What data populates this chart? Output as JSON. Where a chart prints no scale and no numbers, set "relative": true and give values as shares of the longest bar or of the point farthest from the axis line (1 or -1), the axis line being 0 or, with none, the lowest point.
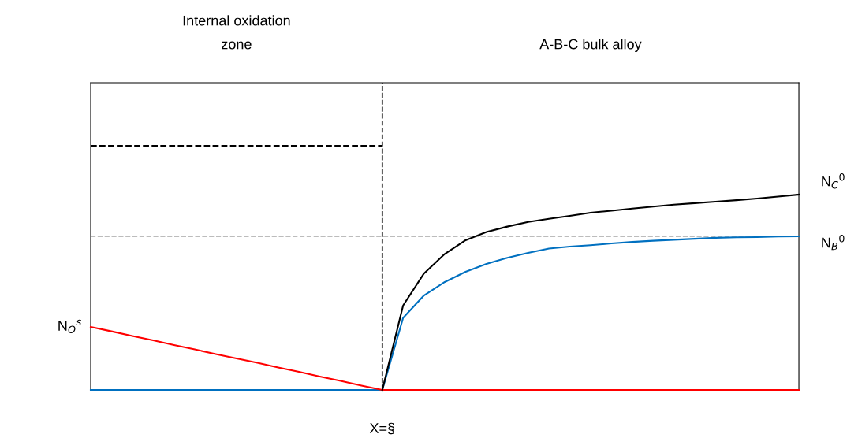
{
  "chart_data": {
    "type": "line",
    "relative": true,
    "categories": [
      null,
      null,
      null,
      null,
      null,
      null,
      null,
      null,
      null,
      null,
      null,
      null,
      null,
      null,
      null,
      null,
      null,
      null,
      null,
      null,
      null,
      null,
      null,
      null,
      null,
      null,
      null,
      null,
      null,
      null,
      null,
      null,
      null,
      null,
      null
    ],
    "series": [
      {
        "color": "#000000",
        "line_style": "dashed",
        "values": [
          1,
          1,
          1,
          1,
          1,
          1,
          1,
          1,
          1,
          1,
          1,
          1,
          1,
          1,
          1,
          null,
          null,
          null,
          null,
          null,
          null,
          null,
          null,
          null,
          null,
          null,
          null,
          null,
          null,
          null,
          null,
          null,
          null,
          null,
          null
        ]
      },
      {
        "name": "N$_{B}$$^{0}$",
        "color": "#0070c0",
        "line_style": "solid",
        "values": [
          0,
          0,
          0,
          0,
          0,
          0,
          0,
          0,
          0,
          0,
          0,
          0,
          0,
          0,
          0,
          0.295,
          0.387,
          0.442,
          0.484,
          0.516,
          0.541,
          0.561,
          0.579,
          0.587,
          0.593,
          0.6,
          0.606,
          0.611,
          0.615,
          0.619,
          0.623,
          0.625,
          0.626,
          0.628,
          0.629
        ]
      },
      {
        "name": "N$_{O}$$^{s}$",
        "color": "#ff0000",
        "line_style": "solid",
        "values": [
          0.258,
          0.24,
          0.221,
          0.203,
          0.184,
          0.166,
          0.147,
          0.129,
          0.111,
          0.092,
          0.074,
          0.055,
          0.037,
          0.018,
          0,
          0,
          0,
          0,
          0,
          0,
          0,
          0,
          0,
          0,
          0,
          0,
          0,
          0,
          0,
          0,
          0,
          0,
          0,
          0,
          0
        ]
      },
      {
        "name": "N$_{C}$$^{0}$",
        "color": "#000000",
        "line_style": "solid",
        "values": [
          null,
          null,
          null,
          null,
          null,
          null,
          null,
          null,
          null,
          null,
          null,
          null,
          null,
          null,
          0,
          0.346,
          0.477,
          0.557,
          0.613,
          0.647,
          0.669,
          0.688,
          0.701,
          0.713,
          0.726,
          0.734,
          0.743,
          0.751,
          0.759,
          0.765,
          0.771,
          0.777,
          0.784,
          0.792,
          0.8
        ]
      }
    ],
    "ref_lines": [
      {
        "axis": "x",
        "label": "X=§",
        "color": "#000000",
        "line_style": "dashed"
      },
      {
        "axis": "y",
        "value": 0.629,
        "color": "#a6a6a6",
        "line_style": "dashed"
      }
    ],
    "annotations": [
      "Internal oxidation\nzone",
      "A-B-C bulk alloy"
    ]
  }
}
